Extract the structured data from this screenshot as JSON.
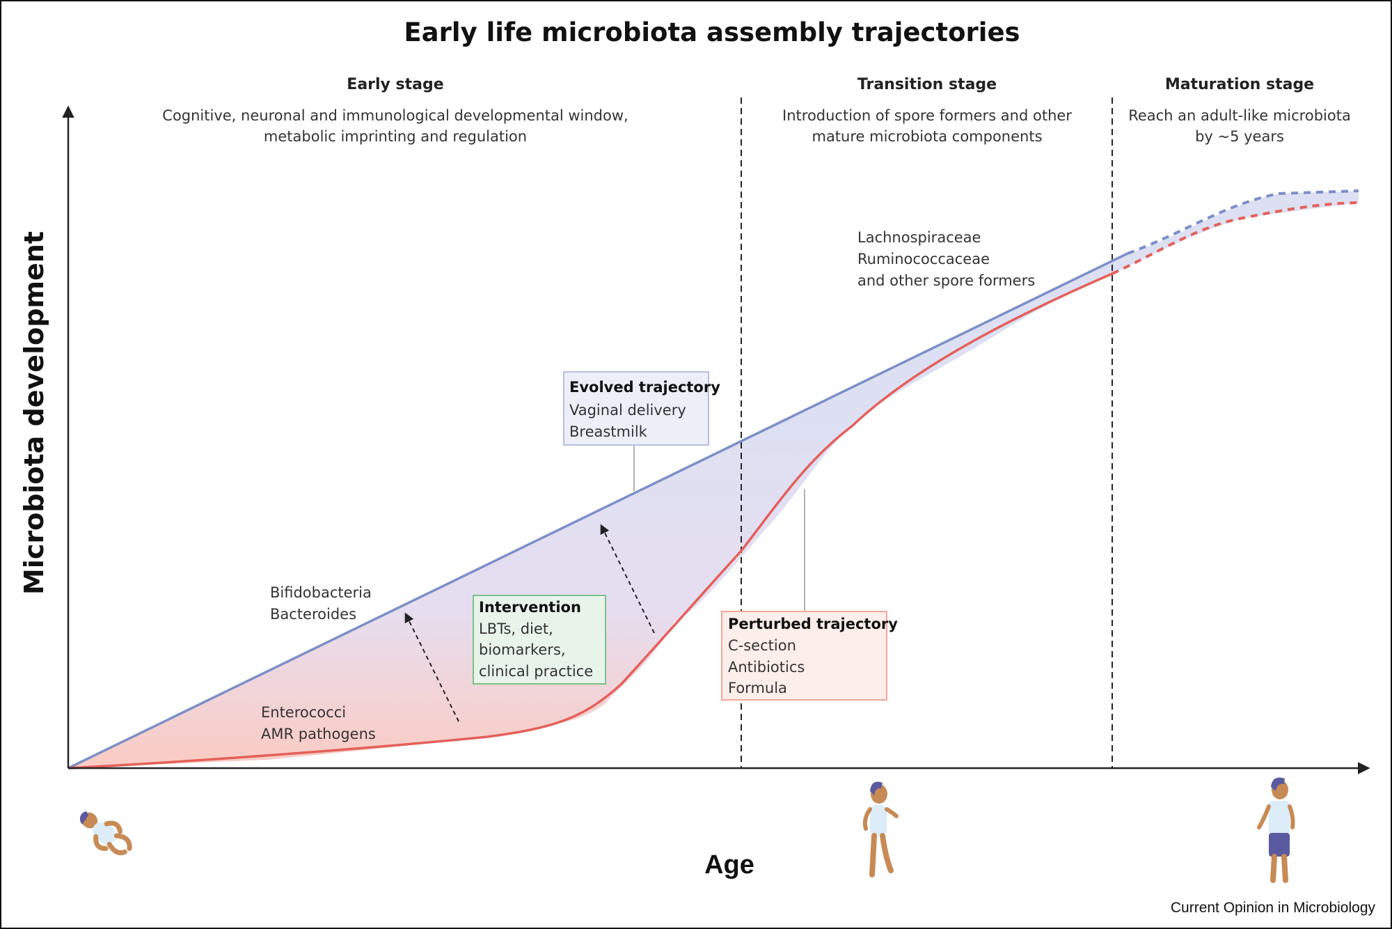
{
  "title": "Early life microbiota assembly trajectories",
  "stages": [
    {
      "name": "Early stage",
      "lines": [
        "Cognitive, neuronal and immunological developmental window,",
        "metabolic imprinting and regulation"
      ]
    },
    {
      "name": "Transition stage",
      "lines": [
        "Introduction of spore formers and other",
        "mature microbiota components"
      ]
    },
    {
      "name": "Maturation stage",
      "lines": [
        "Reach an adult-like microbiota",
        "by ~5 years"
      ]
    }
  ],
  "axes": {
    "y_label": "Microbiota development",
    "x_label": "Age"
  },
  "taxa_labels": {
    "late": [
      "Lachnospiraceae",
      "Ruminococcaceae",
      "and other spore formers"
    ],
    "early_evolved": [
      "Bifidobacteria",
      "Bacteroides"
    ],
    "early_perturbed": [
      "Enterococci",
      "AMR pathogens"
    ]
  },
  "boxes": {
    "evolved": {
      "title": "Evolved trajectory",
      "lines": [
        "Vaginal delivery",
        "Breastmilk"
      ]
    },
    "intervention": {
      "title": "Intervention",
      "lines": [
        "LBTs, diet,",
        "biomarkers,",
        "clinical practice"
      ]
    },
    "perturbed": {
      "title": "Perturbed trajectory",
      "lines": [
        "C-section",
        "Antibiotics",
        "Formula"
      ]
    }
  },
  "colors": {
    "evolved": "#7b8fc8",
    "perturbed": "#e4605a",
    "band": "#dde0f3",
    "intervention_border": "#7cc08a"
  },
  "figures": [
    "infant-icon",
    "toddler-icon",
    "child-icon"
  ],
  "credit": "Current Opinion in Microbiology"
}
